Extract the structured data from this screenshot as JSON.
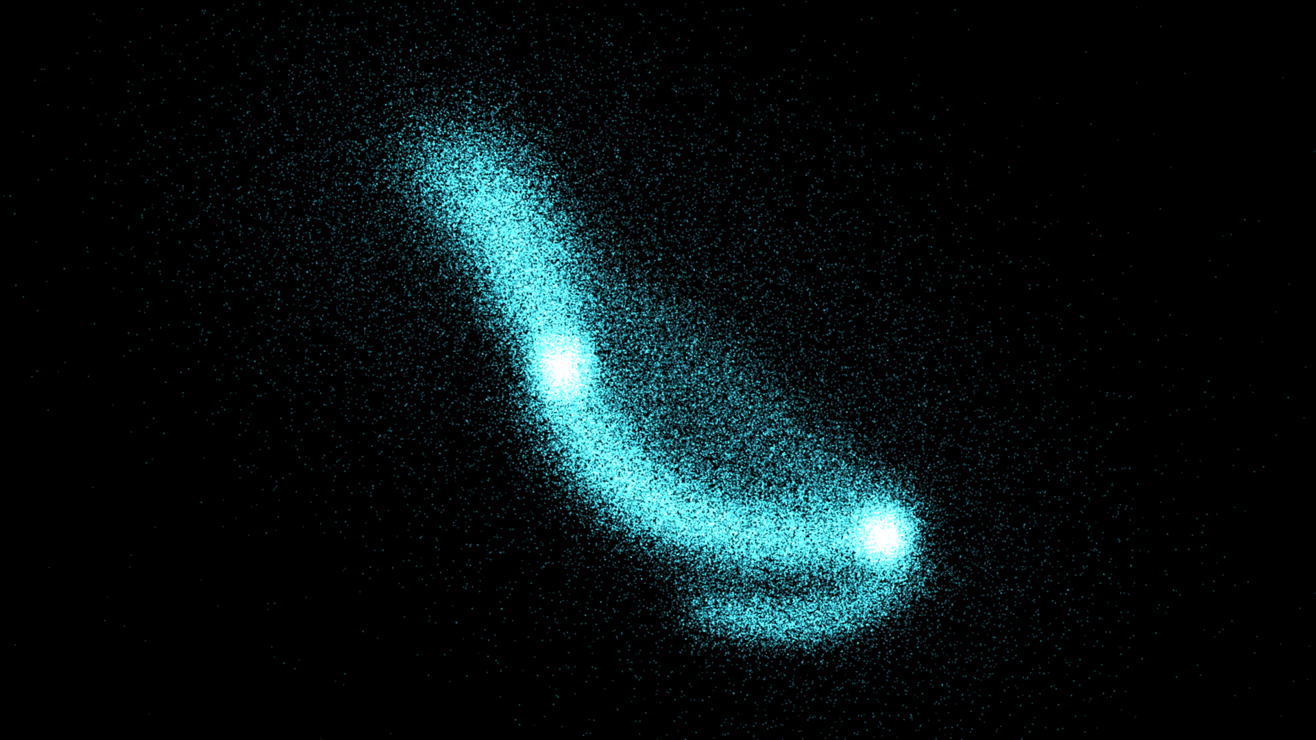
{
  "scene": {
    "background_color": "#000000",
    "particle_color": "#3fd3ee",
    "core_color": "#dffcff",
    "glow_color": "#54e6ff",
    "galaxy_count": 2,
    "rendering": "particle-field"
  }
}
